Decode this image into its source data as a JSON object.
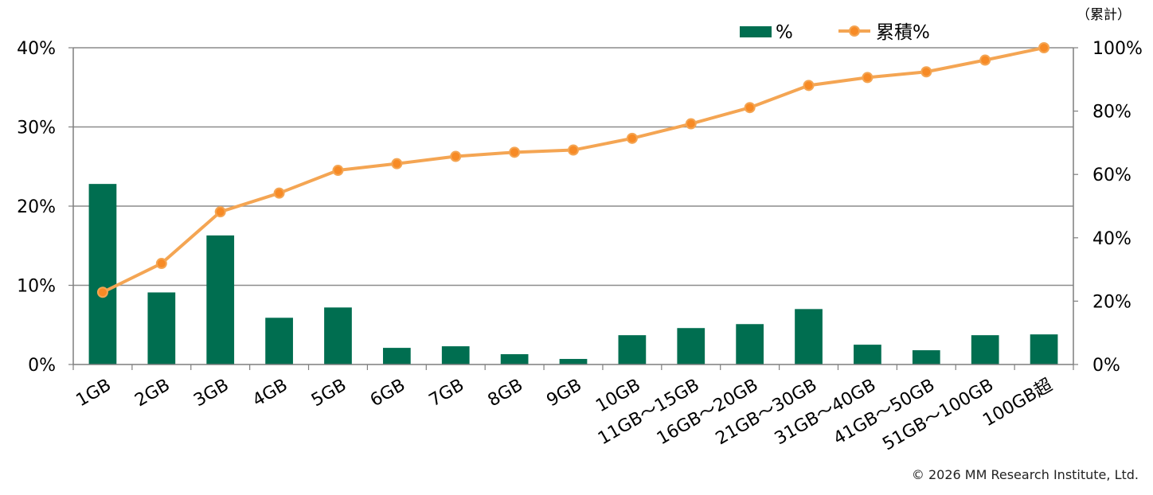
{
  "chart_data": {
    "type": "bar",
    "categories": [
      "1GB",
      "2GB",
      "3GB",
      "4GB",
      "5GB",
      "6GB",
      "7GB",
      "8GB",
      "9GB",
      "10GB",
      "11GB～15GB",
      "16GB～20GB",
      "21GB～30GB",
      "31GB～40GB",
      "41GB～50GB",
      "51GB～100GB",
      "100GB超"
    ],
    "series": [
      {
        "name": "%",
        "type": "bar",
        "axis": "left",
        "values": [
          22.8,
          9.1,
          16.3,
          5.9,
          7.2,
          2.1,
          2.3,
          1.3,
          0.7,
          3.7,
          4.6,
          5.1,
          7.0,
          2.5,
          1.8,
          3.7,
          3.8
        ]
      },
      {
        "name": "累積%",
        "type": "line",
        "axis": "right",
        "values": [
          22.8,
          31.9,
          48.2,
          54.1,
          61.3,
          63.4,
          65.7,
          67.0,
          67.7,
          71.4,
          76.0,
          81.1,
          88.1,
          90.6,
          92.4,
          96.1,
          100.0
        ]
      }
    ],
    "y_left": {
      "ylim": [
        0,
        40
      ],
      "ticks": [
        "0%",
        "10%",
        "20%",
        "30%",
        "40%"
      ],
      "tick_values": [
        0,
        10,
        20,
        30,
        40
      ]
    },
    "y_right": {
      "ylim": [
        0,
        100
      ],
      "ticks": [
        "0%",
        "20%",
        "40%",
        "60%",
        "80%",
        "100%"
      ],
      "tick_values": [
        0,
        20,
        40,
        60,
        80,
        100
      ],
      "label": "（累計）"
    },
    "grid": true,
    "legend_position": "top-center",
    "colors": {
      "bar": "#006e50",
      "line": "#f4a553",
      "marker_fill": "#f78a25",
      "marker_edge": "#f4a553",
      "grid": "#8c8c8c"
    }
  },
  "footer": {
    "copyright": "© 2026 MM Research Institute, Ltd."
  }
}
